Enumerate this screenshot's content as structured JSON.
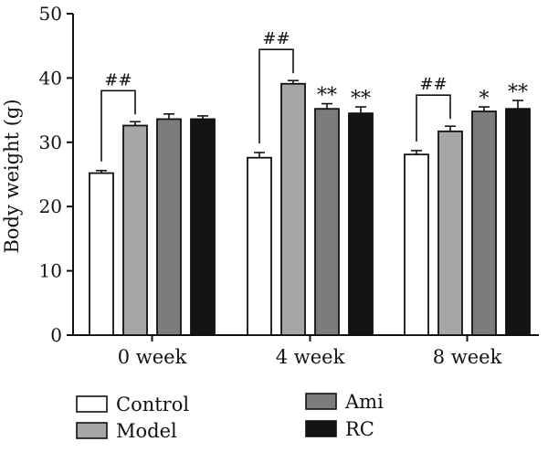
{
  "chart_data": {
    "type": "bar",
    "title": "",
    "xlabel": "",
    "ylabel": "Body weight (g)",
    "ylim": [
      0,
      50
    ],
    "yticks": [
      0,
      10,
      20,
      30,
      40,
      50
    ],
    "grid": false,
    "legend_position": "bottom",
    "categories": [
      "0 week",
      "4 week",
      "8 week"
    ],
    "series": [
      {
        "name": "Control",
        "color": "#ffffff",
        "values": [
          25.2,
          27.6,
          28.1
        ],
        "errors": [
          0.4,
          0.8,
          0.6
        ]
      },
      {
        "name": "Model",
        "color": "#a6a6a6",
        "values": [
          32.6,
          39.1,
          31.7
        ],
        "errors": [
          0.6,
          0.5,
          0.8
        ]
      },
      {
        "name": "Ami",
        "color": "#7c7c7c",
        "values": [
          33.6,
          35.2,
          34.8
        ],
        "errors": [
          0.8,
          0.8,
          0.7
        ]
      },
      {
        "name": "RC",
        "color": "#141414",
        "values": [
          33.6,
          34.5,
          35.2
        ],
        "errors": [
          0.5,
          1.0,
          1.3
        ]
      }
    ],
    "brackets": [
      {
        "category": 0,
        "from_series": 0,
        "to_series": 1,
        "label": "##"
      },
      {
        "category": 1,
        "from_series": 0,
        "to_series": 1,
        "label": "##"
      },
      {
        "category": 2,
        "from_series": 0,
        "to_series": 1,
        "label": "##"
      }
    ],
    "annotations": [
      {
        "category": 1,
        "series": 2,
        "label": "**"
      },
      {
        "category": 1,
        "series": 3,
        "label": "**"
      },
      {
        "category": 2,
        "series": 2,
        "label": "*"
      },
      {
        "category": 2,
        "series": 3,
        "label": "**"
      }
    ]
  }
}
